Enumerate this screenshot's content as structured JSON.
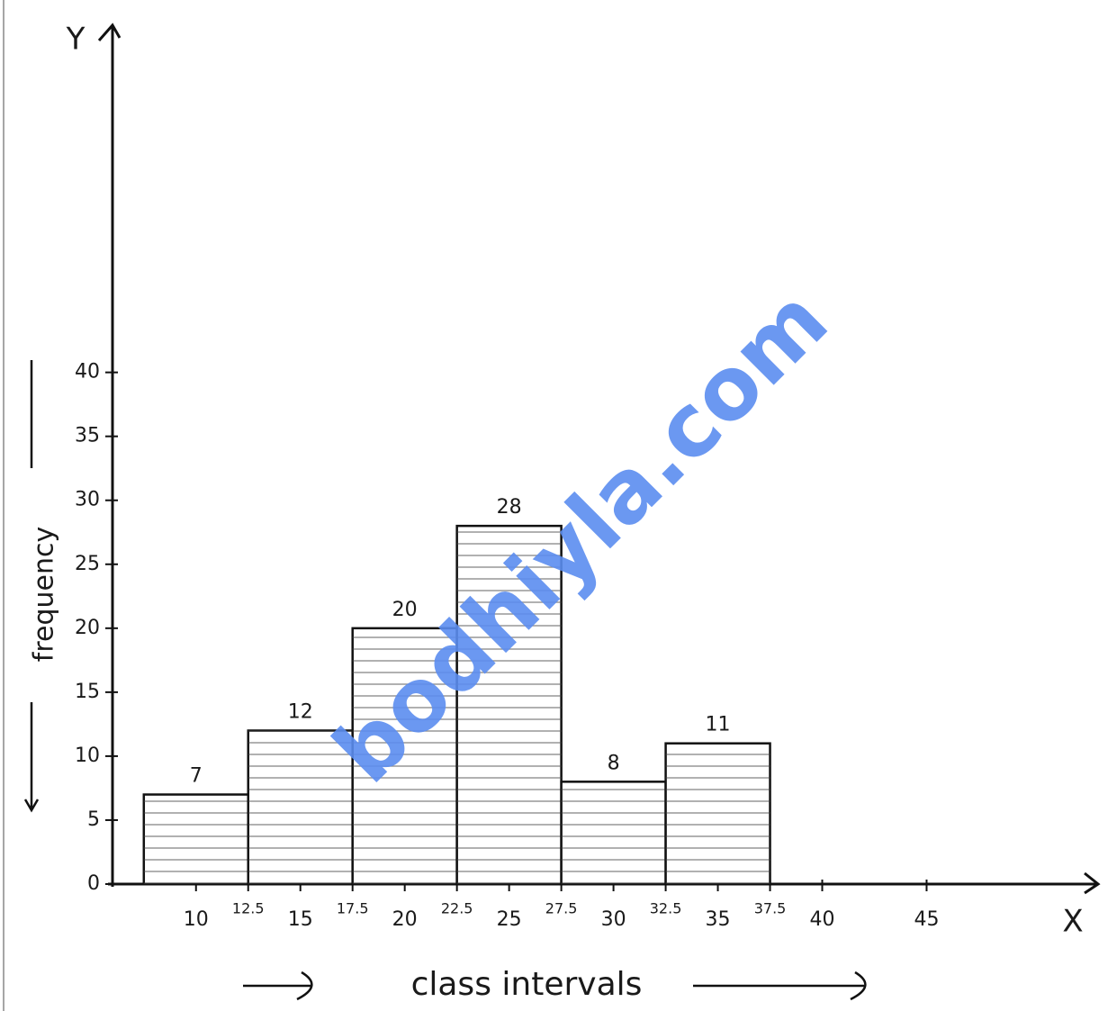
{
  "chart_data": {
    "type": "histogram",
    "y_axis_letter": "Y",
    "x_axis_letter": "X",
    "xlabel": "class intervals",
    "ylabel": "frequency",
    "bins": [
      7.5,
      12.5,
      17.5,
      22.5,
      27.5,
      32.5,
      37.5
    ],
    "values": [
      7,
      12,
      20,
      28,
      8,
      11
    ],
    "color": "#ffffff",
    "xlim": [
      6,
      53
    ],
    "ylim": [
      0,
      67
    ],
    "xticks": [
      10,
      12.5,
      15,
      17.5,
      20,
      22.5,
      25,
      27.5,
      30,
      32.5,
      35,
      37.5,
      40,
      45
    ],
    "yticks": [
      0,
      5,
      10,
      15,
      20,
      25,
      30,
      35,
      40
    ],
    "watermark": "bodhiyla.com"
  }
}
